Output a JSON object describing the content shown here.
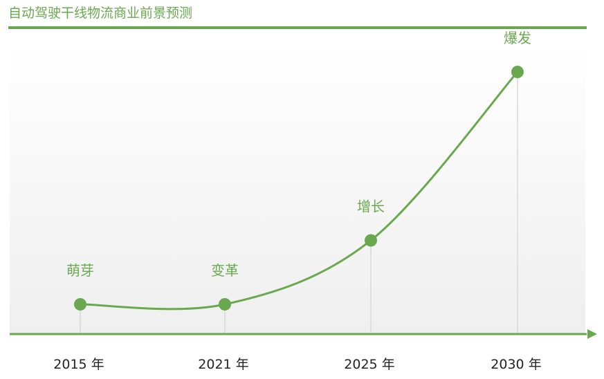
{
  "header": {
    "title": "自动驾驶干线物流商业前景预测"
  },
  "colors": {
    "accent": "#6aa84f",
    "dropline": "#d9d9d9",
    "text": "#222222"
  },
  "chart_data": {
    "type": "line",
    "title": "自动驾驶干线物流商业前景预测",
    "xlabel": "",
    "ylabel": "",
    "grid": false,
    "legend": "none",
    "categories": [
      "2015 年",
      "2021 年",
      "2025 年",
      "2030 年"
    ],
    "stage_labels": [
      "萌芽",
      "变革",
      "增长",
      "爆发"
    ],
    "values": [
      1.0,
      1.0,
      3.2,
      9.0
    ],
    "ylim": [
      0,
      10
    ]
  }
}
